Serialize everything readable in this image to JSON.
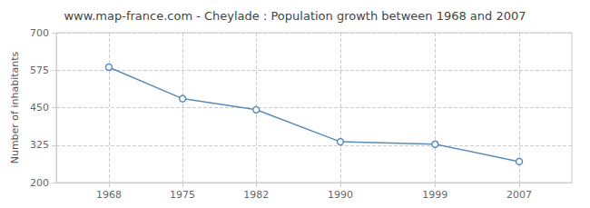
{
  "chart_data": {
    "type": "line",
    "title": "www.map-france.com - Cheylade : Population growth between 1968 and 2007",
    "ylabel": "Number of inhabitants",
    "x": [
      1968,
      1975,
      1982,
      1990,
      1999,
      2007
    ],
    "values": [
      585,
      480,
      443,
      336,
      328,
      270
    ],
    "color": "#5b8db8",
    "marker": "circle",
    "xlim": [
      1963,
      2012
    ],
    "ylim": [
      200,
      700
    ],
    "xticks": [
      1968,
      1975,
      1982,
      1990,
      1999,
      2007
    ],
    "yticks": [
      200,
      325,
      450,
      575,
      700
    ],
    "grid": true
  }
}
